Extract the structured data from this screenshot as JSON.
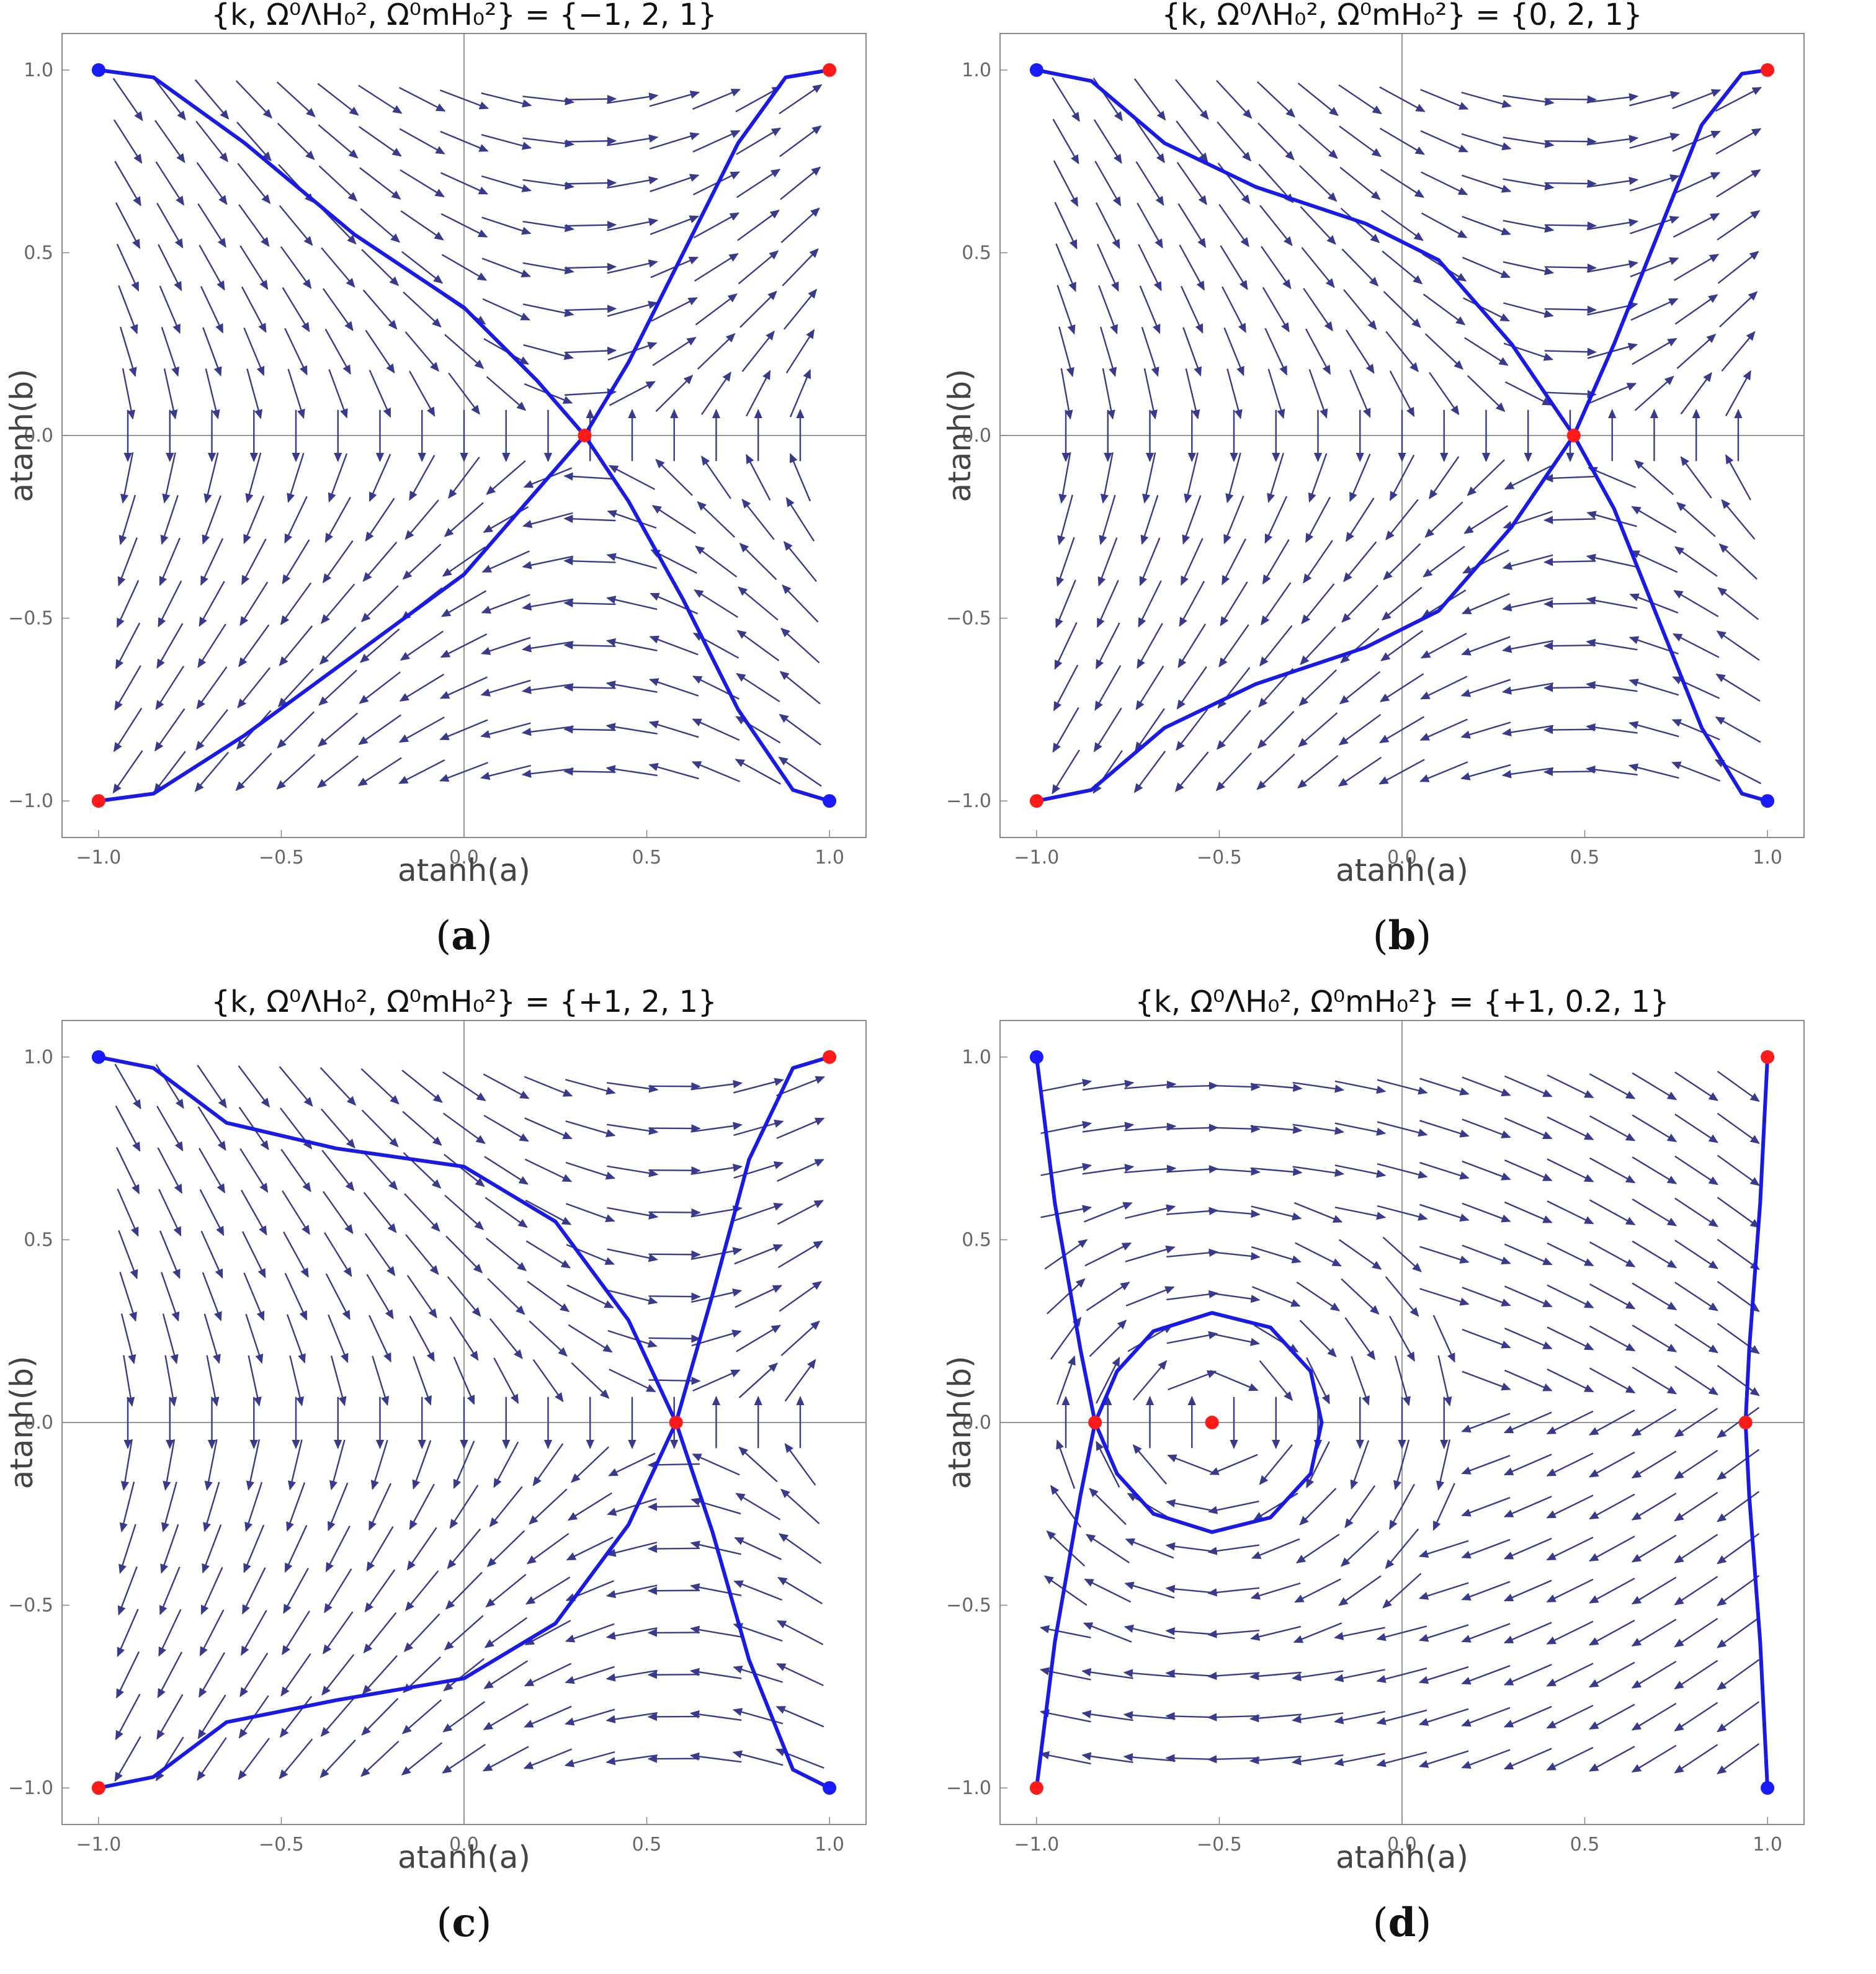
{
  "chart_data": [
    {
      "type": "stream",
      "caption_letter": "a",
      "title": "{k, Ω⁰ΛH₀², Ω⁰mH₀²} = {−1, 2, 1}",
      "params": {
        "k": -1,
        "omega_lambda_h0sq": 2,
        "omega_m_h0sq": 1
      },
      "xlabel": "atanh(a)",
      "ylabel": "atanh(b)",
      "xlim": [
        -1.1,
        1.1
      ],
      "ylim": [
        -1.1,
        1.1
      ],
      "xticks": [
        "−1.0",
        "−0.5",
        "0.0",
        "0.5",
        "1.0"
      ],
      "yticks": [
        "−1.0",
        "−0.5",
        "0.0",
        "0.5",
        "1.0"
      ],
      "grid": false,
      "saddle": [
        0.33,
        0
      ],
      "critical_points": [
        {
          "x": -1,
          "y": 1,
          "color": "blue"
        },
        {
          "x": 1,
          "y": 1,
          "color": "red"
        },
        {
          "x": -1,
          "y": -1,
          "color": "red"
        },
        {
          "x": 1,
          "y": -1,
          "color": "blue"
        },
        {
          "x": 0.33,
          "y": 0,
          "color": "red"
        }
      ],
      "separatrices": [
        [
          [
            -1,
            1
          ],
          [
            -0.85,
            0.98
          ],
          [
            -0.6,
            0.8
          ],
          [
            -0.3,
            0.55
          ],
          [
            0,
            0.35
          ],
          [
            0.2,
            0.15
          ],
          [
            0.33,
            0
          ],
          [
            0.45,
            -0.18
          ],
          [
            0.6,
            -0.45
          ],
          [
            0.75,
            -0.75
          ],
          [
            0.9,
            -0.97
          ],
          [
            1,
            -1
          ]
        ],
        [
          [
            -1,
            -1
          ],
          [
            -0.85,
            -0.98
          ],
          [
            -0.6,
            -0.82
          ],
          [
            -0.3,
            -0.6
          ],
          [
            0,
            -0.38
          ],
          [
            0.2,
            -0.15
          ],
          [
            0.33,
            0
          ],
          [
            0.45,
            0.2
          ],
          [
            0.6,
            0.5
          ],
          [
            0.75,
            0.8
          ],
          [
            0.88,
            0.98
          ],
          [
            1,
            1
          ]
        ]
      ]
    },
    {
      "type": "stream",
      "caption_letter": "b",
      "title": "{k, Ω⁰ΛH₀², Ω⁰mH₀²} = {0, 2, 1}",
      "params": {
        "k": 0,
        "omega_lambda_h0sq": 2,
        "omega_m_h0sq": 1
      },
      "xlabel": "atanh(a)",
      "ylabel": "atanh(b)",
      "xlim": [
        -1.1,
        1.1
      ],
      "ylim": [
        -1.1,
        1.1
      ],
      "xticks": [
        "−1.0",
        "−0.5",
        "0.0",
        "0.5",
        "1.0"
      ],
      "yticks": [
        "−1.0",
        "−0.5",
        "0.0",
        "0.5",
        "1.0"
      ],
      "grid": false,
      "saddle": [
        0.47,
        0
      ],
      "critical_points": [
        {
          "x": -1,
          "y": 1,
          "color": "blue"
        },
        {
          "x": 1,
          "y": 1,
          "color": "red"
        },
        {
          "x": -1,
          "y": -1,
          "color": "red"
        },
        {
          "x": 1,
          "y": -1,
          "color": "blue"
        },
        {
          "x": 0.47,
          "y": 0,
          "color": "red"
        }
      ],
      "separatrices": [
        [
          [
            -1,
            1
          ],
          [
            -0.85,
            0.97
          ],
          [
            -0.65,
            0.8
          ],
          [
            -0.4,
            0.68
          ],
          [
            -0.1,
            0.58
          ],
          [
            0.1,
            0.48
          ],
          [
            0.3,
            0.25
          ],
          [
            0.47,
            0
          ],
          [
            0.58,
            -0.2
          ],
          [
            0.7,
            -0.5
          ],
          [
            0.82,
            -0.8
          ],
          [
            0.93,
            -0.98
          ],
          [
            1,
            -1
          ]
        ],
        [
          [
            -1,
            -1
          ],
          [
            -0.85,
            -0.97
          ],
          [
            -0.65,
            -0.8
          ],
          [
            -0.4,
            -0.68
          ],
          [
            -0.1,
            -0.58
          ],
          [
            0.1,
            -0.48
          ],
          [
            0.3,
            -0.25
          ],
          [
            0.47,
            0
          ],
          [
            0.58,
            0.25
          ],
          [
            0.7,
            0.55
          ],
          [
            0.82,
            0.85
          ],
          [
            0.93,
            0.99
          ],
          [
            1,
            1
          ]
        ]
      ]
    },
    {
      "type": "stream",
      "caption_letter": "c",
      "title": "{k, Ω⁰ΛH₀², Ω⁰mH₀²} = {+1, 2, 1}",
      "params": {
        "k": 1,
        "omega_lambda_h0sq": 2,
        "omega_m_h0sq": 1
      },
      "xlabel": "atanh(a)",
      "ylabel": "atanh(b)",
      "xlim": [
        -1.1,
        1.1
      ],
      "ylim": [
        -1.1,
        1.1
      ],
      "xticks": [
        "−1.0",
        "−0.5",
        "0.0",
        "0.5",
        "1.0"
      ],
      "yticks": [
        "−1.0",
        "−0.5",
        "0.0",
        "0.5",
        "1.0"
      ],
      "grid": false,
      "saddle": [
        0.58,
        0
      ],
      "critical_points": [
        {
          "x": -1,
          "y": 1,
          "color": "blue"
        },
        {
          "x": 1,
          "y": 1,
          "color": "red"
        },
        {
          "x": -1,
          "y": -1,
          "color": "red"
        },
        {
          "x": 1,
          "y": -1,
          "color": "blue"
        },
        {
          "x": 0.58,
          "y": 0,
          "color": "red"
        }
      ],
      "separatrices": [
        [
          [
            -1,
            1
          ],
          [
            -0.85,
            0.97
          ],
          [
            -0.65,
            0.82
          ],
          [
            -0.35,
            0.75
          ],
          [
            0,
            0.7
          ],
          [
            0.25,
            0.55
          ],
          [
            0.45,
            0.28
          ],
          [
            0.58,
            0
          ],
          [
            0.68,
            -0.3
          ],
          [
            0.78,
            -0.65
          ],
          [
            0.9,
            -0.95
          ],
          [
            1,
            -1
          ]
        ],
        [
          [
            -1,
            -1
          ],
          [
            -0.85,
            -0.97
          ],
          [
            -0.65,
            -0.82
          ],
          [
            -0.35,
            -0.76
          ],
          [
            0,
            -0.7
          ],
          [
            0.25,
            -0.55
          ],
          [
            0.45,
            -0.28
          ],
          [
            0.58,
            0
          ],
          [
            0.68,
            0.35
          ],
          [
            0.78,
            0.72
          ],
          [
            0.9,
            0.97
          ],
          [
            1,
            1
          ]
        ]
      ]
    },
    {
      "type": "stream",
      "caption_letter": "d",
      "title": "{k, Ω⁰ΛH₀², Ω⁰mH₀²} = {+1, 0.2, 1}",
      "params": {
        "k": 1,
        "omega_lambda_h0sq": 0.2,
        "omega_m_h0sq": 1
      },
      "xlabel": "atanh(a)",
      "ylabel": "atanh(b)",
      "xlim": [
        -1.1,
        1.1
      ],
      "ylim": [
        -1.1,
        1.1
      ],
      "xticks": [
        "−1.0",
        "−0.5",
        "0.0",
        "0.5",
        "1.0"
      ],
      "yticks": [
        "−1.0",
        "−0.5",
        "0.0",
        "0.5",
        "1.0"
      ],
      "grid": false,
      "center": [
        -0.52,
        0
      ],
      "critical_points": [
        {
          "x": -1,
          "y": 1,
          "color": "blue"
        },
        {
          "x": 1,
          "y": 1,
          "color": "red"
        },
        {
          "x": -1,
          "y": -1,
          "color": "red"
        },
        {
          "x": 1,
          "y": -1,
          "color": "blue"
        },
        {
          "x": -0.84,
          "y": 0,
          "color": "red"
        },
        {
          "x": -0.52,
          "y": 0,
          "color": "red"
        },
        {
          "x": 0.94,
          "y": 0,
          "color": "red"
        }
      ],
      "separatrices": [
        [
          [
            -1,
            1
          ],
          [
            -0.95,
            0.6
          ],
          [
            -0.88,
            0.2
          ],
          [
            -0.84,
            0
          ],
          [
            -0.88,
            -0.2
          ],
          [
            -0.95,
            -0.6
          ],
          [
            -1,
            -1
          ]
        ],
        [
          [
            -0.84,
            0
          ],
          [
            -0.78,
            0.14
          ],
          [
            -0.68,
            0.25
          ],
          [
            -0.52,
            0.3
          ],
          [
            -0.36,
            0.26
          ],
          [
            -0.25,
            0.14
          ],
          [
            -0.22,
            0
          ],
          [
            -0.25,
            -0.14
          ],
          [
            -0.36,
            -0.26
          ],
          [
            -0.52,
            -0.3
          ],
          [
            -0.68,
            -0.25
          ],
          [
            -0.78,
            -0.14
          ],
          [
            -0.84,
            0
          ]
        ],
        [
          [
            1,
            1
          ],
          [
            0.98,
            0.6
          ],
          [
            0.95,
            0.2
          ],
          [
            0.94,
            0
          ],
          [
            0.95,
            -0.2
          ],
          [
            0.98,
            -0.6
          ],
          [
            1,
            -1
          ]
        ]
      ]
    }
  ]
}
